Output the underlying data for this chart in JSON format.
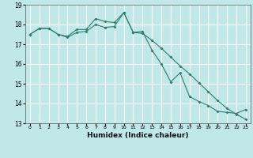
{
  "title": "",
  "xlabel": "Humidex (Indice chaleur)",
  "background_color": "#c0e8e8",
  "grid_color": "#ffffff",
  "line_color": "#2e7d6e",
  "xlim": [
    -0.5,
    23.5
  ],
  "ylim": [
    13,
    19
  ],
  "xticks": [
    0,
    1,
    2,
    3,
    4,
    5,
    6,
    7,
    8,
    9,
    10,
    11,
    12,
    13,
    14,
    15,
    16,
    17,
    18,
    19,
    20,
    21,
    22,
    23
  ],
  "yticks": [
    13,
    14,
    15,
    16,
    17,
    18,
    19
  ],
  "line1_x": [
    0,
    1,
    2,
    3,
    4,
    5,
    6,
    7,
    8,
    9,
    10,
    11,
    12,
    13,
    14,
    15,
    16,
    17,
    18,
    19,
    20,
    21,
    22,
    23
  ],
  "line1_y": [
    17.5,
    17.8,
    17.8,
    17.5,
    17.4,
    17.75,
    17.75,
    18.3,
    18.15,
    18.1,
    18.6,
    17.6,
    17.65,
    16.7,
    16.0,
    15.1,
    15.55,
    14.35,
    14.1,
    13.9,
    13.6,
    13.55,
    13.5,
    13.7
  ],
  "line2_x": [
    0,
    1,
    2,
    3,
    4,
    5,
    6,
    7,
    8,
    9,
    10,
    11,
    12,
    13,
    14,
    15,
    16,
    17,
    18,
    19,
    20,
    21,
    22,
    23
  ],
  "line2_y": [
    17.5,
    17.8,
    17.8,
    17.5,
    17.35,
    17.6,
    17.65,
    18.0,
    17.85,
    17.9,
    18.6,
    17.6,
    17.55,
    17.2,
    16.8,
    16.35,
    15.9,
    15.5,
    15.05,
    14.6,
    14.15,
    13.75,
    13.45,
    13.2
  ]
}
